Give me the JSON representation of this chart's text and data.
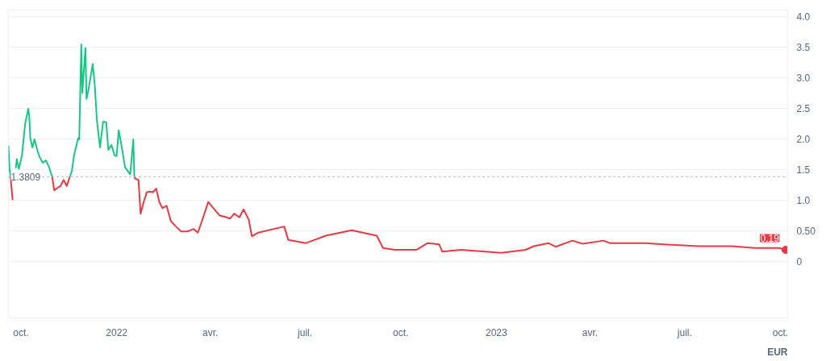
{
  "chart_data": {
    "type": "line",
    "x": [
      "2021-09-19",
      "2021-09-20",
      "2021-09-21",
      "2021-09-23",
      "2021-09-26",
      "2021-09-27",
      "2021-09-29",
      "2021-10-02",
      "2021-10-05",
      "2021-10-08",
      "2021-10-09",
      "2021-10-10",
      "2021-10-12",
      "2021-10-14",
      "2021-10-17",
      "2021-10-19",
      "2021-10-22",
      "2021-10-25",
      "2021-10-28",
      "2021-10-31",
      "2021-11-02",
      "2021-11-05",
      "2021-11-08",
      "2021-11-11",
      "2021-11-14",
      "2021-11-17",
      "2021-11-19",
      "2021-11-21",
      "2021-11-25",
      "2021-11-26",
      "2021-11-28",
      "2021-11-29",
      "2021-12-02",
      "2021-12-03",
      "2021-12-05",
      "2021-12-09",
      "2021-12-11",
      "2021-12-13",
      "2021-12-16",
      "2021-12-19",
      "2021-12-22",
      "2021-12-24",
      "2021-12-27",
      "2021-12-30",
      "2022-01-01",
      "2022-01-03",
      "2022-01-06",
      "2022-01-09",
      "2022-01-14",
      "2022-01-17",
      "2022-01-18",
      "2022-01-19",
      "2022-01-22",
      "2022-01-24",
      "2022-01-27",
      "2022-01-30",
      "2022-02-02",
      "2022-02-05",
      "2022-02-08",
      "2022-02-11",
      "2022-02-14",
      "2022-02-18",
      "2022-02-22",
      "2022-02-27",
      "2022-03-04",
      "2022-03-10",
      "2022-03-16",
      "2022-03-20",
      "2022-03-24",
      "2022-03-30",
      "2022-04-05",
      "2022-04-10",
      "2022-04-15",
      "2022-04-20",
      "2022-04-24",
      "2022-04-29",
      "2022-05-03",
      "2022-05-08",
      "2022-05-11",
      "2022-05-17",
      "2022-06-11",
      "2022-06-15",
      "2022-07-02",
      "2022-07-21",
      "2022-08-15",
      "2022-09-08",
      "2022-09-14",
      "2022-09-25",
      "2022-10-16",
      "2022-10-27",
      "2022-11-07",
      "2022-11-10",
      "2022-11-28",
      "2023-01-06",
      "2023-01-29",
      "2023-02-06",
      "2023-02-20",
      "2023-02-27",
      "2023-03-15",
      "2023-03-25",
      "2023-04-14",
      "2023-04-20",
      "2023-05-24",
      "2023-06-11",
      "2023-07-14",
      "2023-08-15",
      "2023-09-06",
      "2023-09-30",
      "2023-10-06"
    ],
    "series": [
      {
        "color": "#16c784",
        "values": [
          1.89,
          1.51,
          1.38,
          null,
          1.52,
          1.67,
          1.51,
          1.73,
          2.24,
          2.49,
          2.37,
          2.01,
          1.86,
          1.99,
          1.8,
          1.7,
          1.61,
          1.65,
          1.54,
          1.38,
          null,
          null,
          null,
          null,
          null,
          1.38,
          1.48,
          1.73,
          2.01,
          1.99,
          3.54,
          2.75,
          3.48,
          2.65,
          2.81,
          3.22,
          2.87,
          2.3,
          1.86,
          2.28,
          2.27,
          1.82,
          1.9,
          1.73,
          1.72,
          2.14,
          1.86,
          1.54,
          1.42,
          1.99,
          1.38,
          null,
          null,
          null,
          null,
          null,
          null,
          null,
          null,
          null,
          null,
          null,
          null,
          null,
          null,
          null,
          null,
          null,
          null,
          null,
          null,
          null,
          null,
          null,
          null,
          null,
          null,
          null,
          null,
          null,
          null,
          null,
          null,
          null,
          null,
          null,
          null,
          null,
          null,
          null,
          null,
          null,
          null,
          null,
          null,
          null,
          null,
          null,
          null,
          null,
          null,
          null,
          null,
          null,
          null,
          null,
          null,
          null,
          null
        ]
      },
      {
        "color": "#ea3943",
        "values": [
          null,
          null,
          1.38,
          1.0,
          null,
          null,
          null,
          null,
          null,
          null,
          null,
          null,
          null,
          null,
          null,
          null,
          null,
          null,
          null,
          1.38,
          1.16,
          1.2,
          1.23,
          1.33,
          1.23,
          1.38,
          null,
          null,
          null,
          null,
          null,
          null,
          null,
          null,
          null,
          null,
          null,
          null,
          null,
          null,
          null,
          null,
          null,
          null,
          null,
          null,
          null,
          null,
          null,
          null,
          1.38,
          1.35,
          1.33,
          0.78,
          0.97,
          1.13,
          1.14,
          1.13,
          1.19,
          0.97,
          0.87,
          0.91,
          0.66,
          0.57,
          0.49,
          0.49,
          0.53,
          0.47,
          0.66,
          0.97,
          0.85,
          0.75,
          0.73,
          0.7,
          0.78,
          0.72,
          0.85,
          0.68,
          0.41,
          0.47,
          0.57,
          0.35,
          0.3,
          0.42,
          0.51,
          0.42,
          0.22,
          0.19,
          0.19,
          0.3,
          0.28,
          0.16,
          0.19,
          0.14,
          0.19,
          0.25,
          0.3,
          0.24,
          0.34,
          0.29,
          0.34,
          0.3,
          0.3,
          0.28,
          0.25,
          0.25,
          0.22,
          0.22,
          0.19
        ]
      }
    ],
    "xlim": [
      "2021-09-19",
      "2023-10-08"
    ],
    "xticks": [
      {
        "value": "2021-10-01",
        "label": "oct."
      },
      {
        "value": "2022-01-01",
        "label": "2022"
      },
      {
        "value": "2022-04-01",
        "label": "avr."
      },
      {
        "value": "2022-07-01",
        "label": "juil."
      },
      {
        "value": "2022-10-01",
        "label": "oct."
      },
      {
        "value": "2023-01-01",
        "label": "2023"
      },
      {
        "value": "2023-04-01",
        "label": "avr."
      },
      {
        "value": "2023-07-01",
        "label": "juil."
      },
      {
        "value": "2023-10-01",
        "label": "oct."
      }
    ],
    "ylim": [
      -0.92,
      4.1
    ],
    "yticks": [
      0,
      {
        "value": 0.5,
        "label": "0.50"
      },
      {
        "value": 1,
        "label": "1.0"
      },
      1.5,
      {
        "value": 2,
        "label": "2.0"
      },
      2.5,
      {
        "value": 3,
        "label": "3.0"
      },
      3.5,
      {
        "value": 4,
        "label": "4.0"
      }
    ],
    "ref_lines": [
      {
        "axis": "y",
        "value": 1.3809,
        "label": "1.3809",
        "color": "#a0a4ac",
        "line_style": "dotted"
      }
    ],
    "annotations": [
      {
        "text": "0.19",
        "x": "2023-10-06",
        "y": 0.19
      },
      "EUR"
    ],
    "grid": "y"
  }
}
